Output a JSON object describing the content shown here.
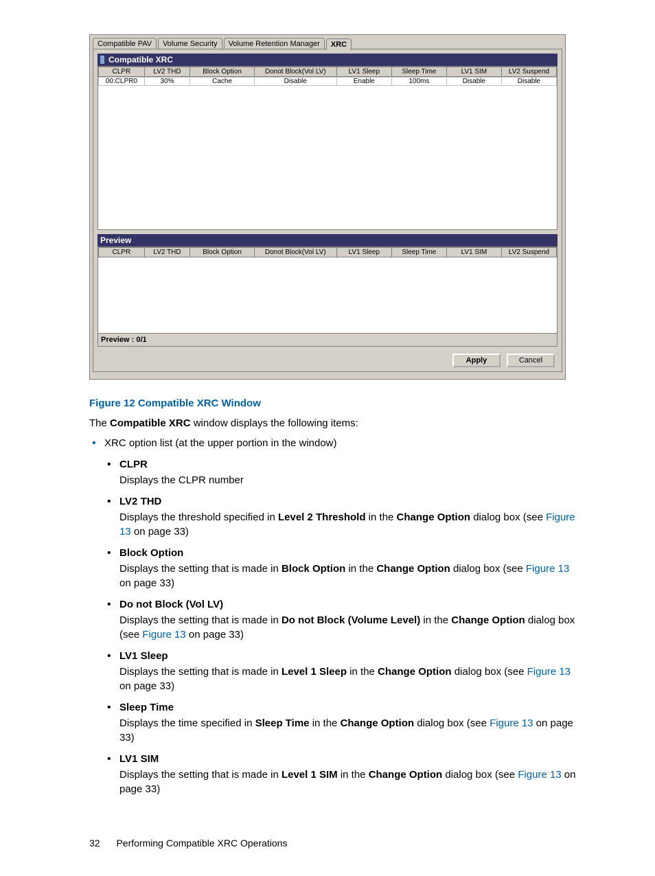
{
  "window": {
    "tabs": [
      {
        "label": "Compatible PAV",
        "active": false
      },
      {
        "label": "Volume Security",
        "active": false
      },
      {
        "label": "Volume Retention Manager",
        "active": false
      },
      {
        "label": "XRC",
        "active": true
      }
    ],
    "section_title": "Compatible XRC",
    "columns": [
      "CLPR",
      "LV2 THD",
      "Block Option",
      "Donot Block(Vol LV)",
      "LV1 Sleep",
      "Sleep Time",
      "LV1 SIM",
      "LV2 Suspend"
    ],
    "row": [
      "00:CLPR0",
      "30%",
      "Cache",
      "Disable",
      "Enable",
      "100ms",
      "Disable",
      "Disable"
    ],
    "col_widths_pct": [
      10,
      10,
      14,
      18,
      12,
      12,
      12,
      12
    ],
    "preview_title": "Preview",
    "preview_footer": "Preview : 0/1",
    "apply_label": "Apply",
    "cancel_label": "Cancel"
  },
  "doc": {
    "figure_caption": "Figure 12 Compatible XRC Window",
    "intro_pre": "The ",
    "intro_bold": "Compatible XRC",
    "intro_post": " window displays the following items:",
    "outer_item": "XRC option list (at the upper portion in the window)",
    "items": [
      {
        "title": "CLPR",
        "desc": [
          {
            "t": "Displays the CLPR number"
          }
        ]
      },
      {
        "title": "LV2 THD",
        "desc": [
          {
            "t": "Displays the threshold specified in "
          },
          {
            "t": "Level 2 Threshold",
            "b": true
          },
          {
            "t": " in the "
          },
          {
            "t": "Change Option",
            "b": true
          },
          {
            "t": " dialog box (see "
          },
          {
            "t": "Figure 13",
            "link": true
          },
          {
            "t": " on page 33)"
          }
        ]
      },
      {
        "title": "Block Option",
        "desc": [
          {
            "t": "Displays the setting that is made in "
          },
          {
            "t": "Block Option",
            "b": true
          },
          {
            "t": " in the "
          },
          {
            "t": "Change Option",
            "b": true
          },
          {
            "t": " dialog box (see "
          },
          {
            "t": "Figure 13",
            "link": true
          },
          {
            "t": " on page 33)"
          }
        ]
      },
      {
        "title": "Do not Block (Vol LV)",
        "desc": [
          {
            "t": "Displays the setting that is made in "
          },
          {
            "t": "Do not Block  (Volume Level)",
            "b": true
          },
          {
            "t": " in the "
          },
          {
            "t": "Change Option",
            "b": true
          },
          {
            "t": " dialog box (see "
          },
          {
            "t": "Figure 13",
            "link": true
          },
          {
            "t": " on page 33)"
          }
        ]
      },
      {
        "title": "LV1 Sleep",
        "desc": [
          {
            "t": "Displays the setting that is made in "
          },
          {
            "t": "Level 1 Sleep",
            "b": true
          },
          {
            "t": " in the "
          },
          {
            "t": "Change Option",
            "b": true
          },
          {
            "t": " dialog box (see "
          },
          {
            "t": "Figure 13",
            "link": true
          },
          {
            "t": " on page 33)"
          }
        ]
      },
      {
        "title": "Sleep Time",
        "desc": [
          {
            "t": "Displays the time specified in "
          },
          {
            "t": "Sleep Time",
            "b": true
          },
          {
            "t": " in the "
          },
          {
            "t": "Change Option",
            "b": true
          },
          {
            "t": " dialog box (see "
          },
          {
            "t": "Figure 13",
            "link": true
          },
          {
            "t": " on page 33)"
          }
        ]
      },
      {
        "title": "LV1 SIM",
        "desc": [
          {
            "t": "Displays the setting that is made in "
          },
          {
            "t": "Level 1 SIM",
            "b": true
          },
          {
            "t": " in the "
          },
          {
            "t": "Change Option",
            "b": true
          },
          {
            "t": " dialog box (see "
          },
          {
            "t": "Figure 13",
            "link": true
          },
          {
            "t": " on page 33)"
          }
        ]
      }
    ],
    "page_number": "32",
    "page_title": "Performing Compatible XRC Operations"
  }
}
